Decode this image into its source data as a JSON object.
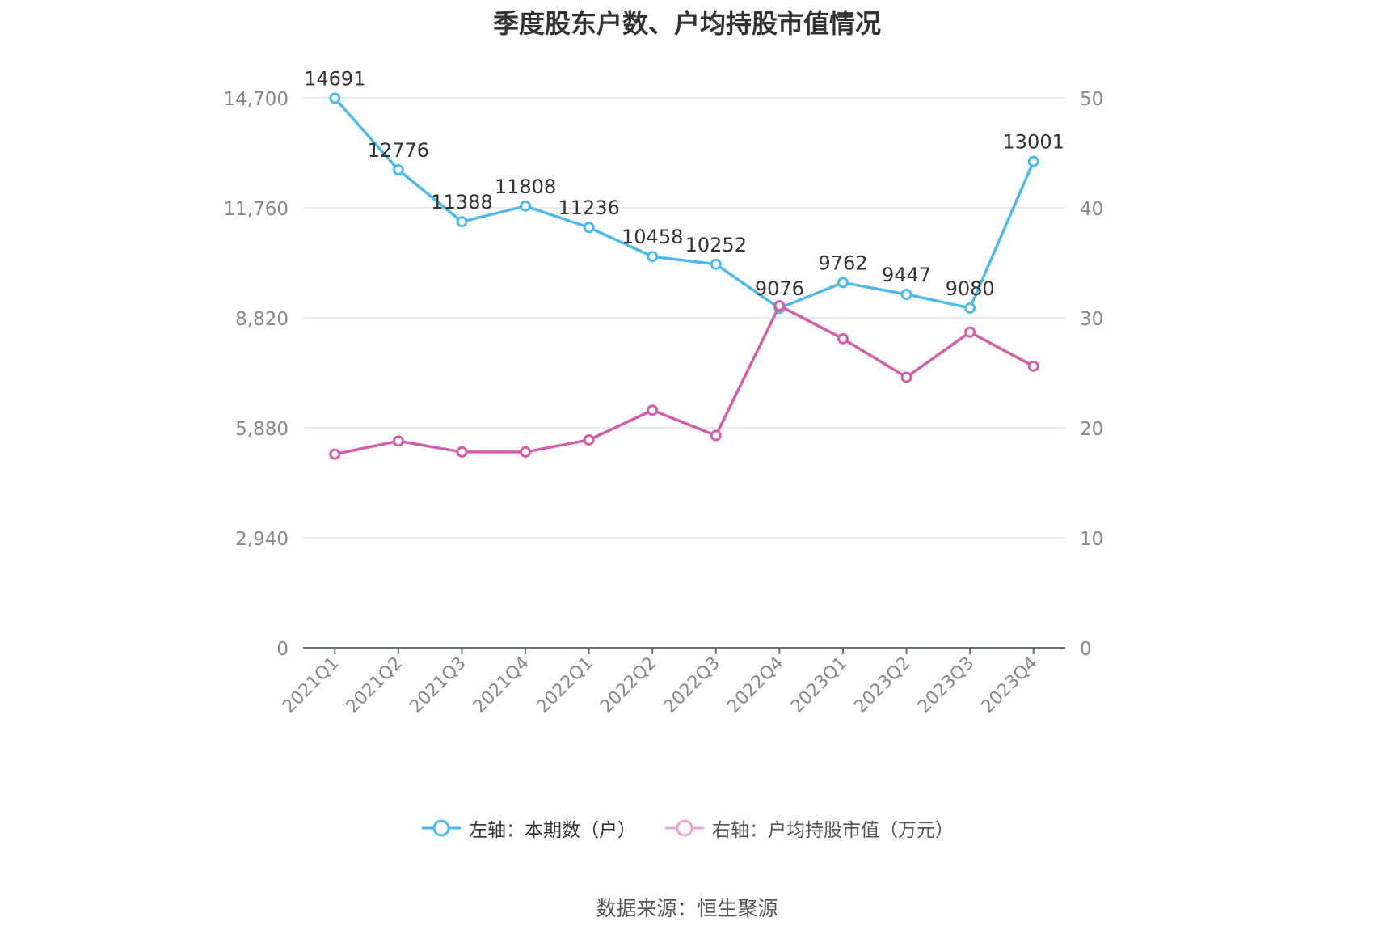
{
  "chart_data": {
    "type": "line",
    "title": "季度股东户数、户均持股市值情况",
    "categories": [
      "2021Q1",
      "2021Q2",
      "2021Q3",
      "2021Q4",
      "2022Q1",
      "2022Q2",
      "2022Q3",
      "2022Q4",
      "2023Q1",
      "2023Q2",
      "2023Q3",
      "2023Q4"
    ],
    "left_axis": {
      "ylim": [
        0,
        14700
      ],
      "ticks": [
        0,
        2940,
        5880,
        8820,
        11760,
        14700
      ],
      "tick_labels": [
        "0",
        "2,940",
        "5,880",
        "8,820",
        "11,760",
        "14,700"
      ]
    },
    "right_axis": {
      "ylim": [
        0,
        50
      ],
      "ticks": [
        0,
        10,
        20,
        30,
        40,
        50
      ],
      "tick_labels": [
        "0",
        "10",
        "20",
        "30",
        "40",
        "50"
      ]
    },
    "series": [
      {
        "name": "左轴：本期数（户）",
        "axis": "left",
        "color": "#4dbaec",
        "values": [
          14691,
          12776,
          11388,
          11808,
          11236,
          10458,
          10252,
          9076,
          9762,
          9447,
          9080,
          13001
        ],
        "labels": [
          "14691",
          "12776",
          "11388",
          "11808",
          "11236",
          "10458",
          "10252",
          "9076",
          "9762",
          "9447",
          "9080",
          "13001"
        ]
      },
      {
        "name": "右轴：户均持股市值（万元）",
        "axis": "right",
        "color": "#d35eaa",
        "values": [
          17.6,
          18.8,
          17.8,
          17.8,
          18.9,
          21.6,
          19.3,
          31.1,
          28.1,
          24.6,
          28.7,
          25.6
        ]
      }
    ],
    "grid": true,
    "legend_position": "bottom-center"
  },
  "source": "数据来源：恒生聚源"
}
